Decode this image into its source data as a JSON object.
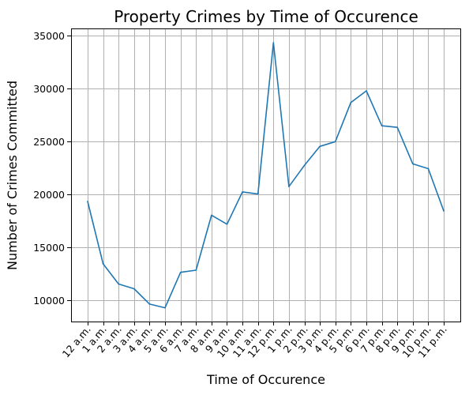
{
  "chart_data": {
    "type": "line",
    "title": "Property Crimes by Time of Occurence",
    "xlabel": "Time of Occurence",
    "ylabel": "Number of Crimes Committed",
    "categories": [
      "12 a.m.",
      "1 a.m.",
      "2 a.m.",
      "3 a.m.",
      "4 a.m.",
      "5 a.m.",
      "6 a.m.",
      "7 a.m.",
      "8 a.m.",
      "9 a.m.",
      "10 a.m.",
      "11 a.m.",
      "12 p.m.",
      "1 p.m.",
      "2 p.m.",
      "3 p.m.",
      "4 p.m.",
      "5 p.m.",
      "6 p.m.",
      "7 p.m.",
      "8 p.m.",
      "9 p.m.",
      "10 p.m.",
      "11 p.m."
    ],
    "series": [
      {
        "values": [
          19300,
          13400,
          11500,
          11050,
          9600,
          9250,
          12600,
          12800,
          18000,
          17150,
          20200,
          20000,
          34300,
          20700,
          22700,
          24500,
          24950,
          28650,
          29750,
          26450,
          26300,
          22850,
          22400,
          18400
        ],
        "color": "#1f77b4"
      }
    ],
    "ylim": [
      7950,
      35650
    ],
    "yticks": [
      10000,
      15000,
      20000,
      25000,
      30000,
      35000
    ],
    "grid": true,
    "legend": "none"
  }
}
